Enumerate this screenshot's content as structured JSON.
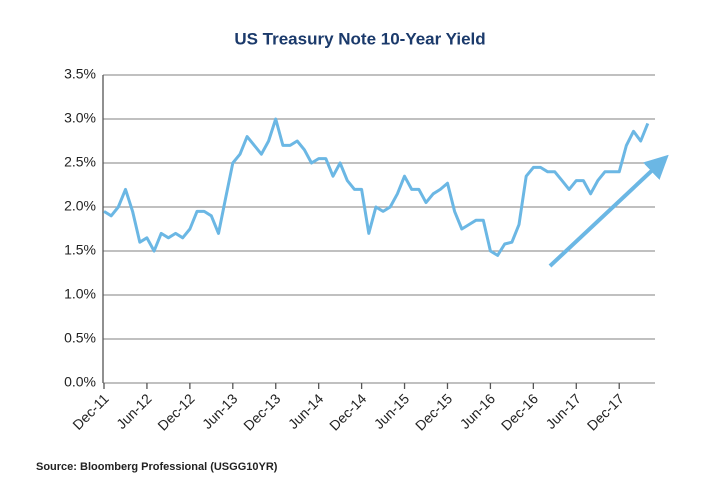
{
  "chart_data": {
    "type": "line",
    "title": "US Treasury Note 10-Year Yield",
    "source": "Source:  Bloomberg Professional (USGG10YR)",
    "x": [
      "2011-12",
      "2012-01",
      "2012-02",
      "2012-03",
      "2012-04",
      "2012-05",
      "2012-06",
      "2012-07",
      "2012-08",
      "2012-09",
      "2012-10",
      "2012-11",
      "2012-12",
      "2013-01",
      "2013-02",
      "2013-03",
      "2013-04",
      "2013-05",
      "2013-06",
      "2013-07",
      "2013-08",
      "2013-09",
      "2013-10",
      "2013-11",
      "2013-12",
      "2014-01",
      "2014-02",
      "2014-03",
      "2014-04",
      "2014-05",
      "2014-06",
      "2014-07",
      "2014-08",
      "2014-09",
      "2014-10",
      "2014-11",
      "2014-12",
      "2015-01",
      "2015-02",
      "2015-03",
      "2015-04",
      "2015-05",
      "2015-06",
      "2015-07",
      "2015-08",
      "2015-09",
      "2015-10",
      "2015-11",
      "2015-12",
      "2016-01",
      "2016-02",
      "2016-03",
      "2016-04",
      "2016-05",
      "2016-06",
      "2016-07",
      "2016-08",
      "2016-09",
      "2016-10",
      "2016-11",
      "2016-12",
      "2017-01",
      "2017-02",
      "2017-03",
      "2017-04",
      "2017-05",
      "2017-06",
      "2017-07",
      "2017-08",
      "2017-09",
      "2017-10",
      "2017-11",
      "2017-12",
      "2018-01",
      "2018-02",
      "2018-03",
      "2018-04"
    ],
    "series": [
      {
        "name": "USGG10YR",
        "color": "#6bb7e4",
        "values": [
          1.95,
          1.9,
          2.0,
          2.2,
          1.95,
          1.6,
          1.65,
          1.5,
          1.7,
          1.65,
          1.7,
          1.65,
          1.75,
          1.95,
          1.95,
          1.9,
          1.7,
          2.1,
          2.5,
          2.6,
          2.8,
          2.7,
          2.6,
          2.75,
          3.0,
          2.7,
          2.7,
          2.75,
          2.65,
          2.5,
          2.55,
          2.55,
          2.35,
          2.5,
          2.3,
          2.2,
          2.2,
          1.7,
          2.0,
          1.95,
          2.0,
          2.15,
          2.35,
          2.2,
          2.2,
          2.05,
          2.15,
          2.2,
          2.27,
          1.95,
          1.75,
          1.8,
          1.85,
          1.85,
          1.5,
          1.45,
          1.58,
          1.6,
          1.8,
          2.35,
          2.45,
          2.45,
          2.4,
          2.4,
          2.3,
          2.2,
          2.3,
          2.3,
          2.15,
          2.3,
          2.4,
          2.4,
          2.4,
          2.7,
          2.86,
          2.75,
          2.95
        ]
      }
    ],
    "xlim": [
      "2011-12",
      "2018-05"
    ],
    "xticks": [
      {
        "value": "2011-12",
        "label": "Dec-11"
      },
      {
        "value": "2012-06",
        "label": "Jun-12"
      },
      {
        "value": "2012-12",
        "label": "Dec-12"
      },
      {
        "value": "2013-06",
        "label": "Jun-13"
      },
      {
        "value": "2013-12",
        "label": "Dec-13"
      },
      {
        "value": "2014-06",
        "label": "Jun-14"
      },
      {
        "value": "2014-12",
        "label": "Dec-14"
      },
      {
        "value": "2015-06",
        "label": "Jun-15"
      },
      {
        "value": "2015-12",
        "label": "Dec-15"
      },
      {
        "value": "2016-06",
        "label": "Jun-16"
      },
      {
        "value": "2016-12",
        "label": "Dec-16"
      },
      {
        "value": "2017-06",
        "label": "Jun-17"
      },
      {
        "value": "2017-12",
        "label": "Dec-17"
      }
    ],
    "ylim": [
      0,
      3.5
    ],
    "yticks": [
      {
        "value": 0,
        "label": "0.0%"
      },
      {
        "value": 0.5,
        "label": "0.5%"
      },
      {
        "value": 1,
        "label": "1.0%"
      },
      {
        "value": 1.5,
        "label": "1.5%"
      },
      {
        "value": 2,
        "label": "2.0%"
      },
      {
        "value": 2.5,
        "label": "2.5%"
      },
      {
        "value": 3,
        "label": "3.0%"
      },
      {
        "value": 3.5,
        "label": "3.5%"
      }
    ],
    "grid": true
  }
}
